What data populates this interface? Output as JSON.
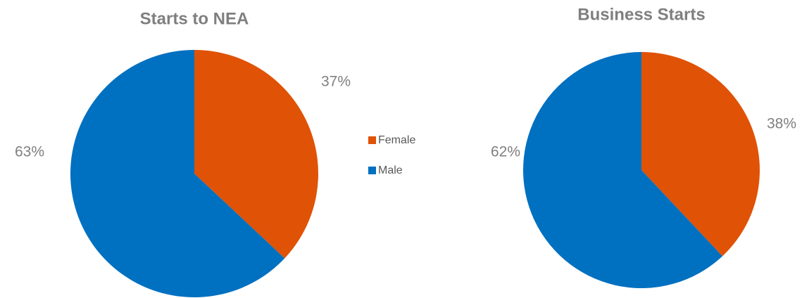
{
  "chart_data": [
    {
      "type": "pie",
      "title": "Starts to NEA",
      "categories": [
        "Female",
        "Male"
      ],
      "values": [
        37,
        63
      ],
      "value_labels": [
        "37%",
        "63%"
      ],
      "colors": [
        "#e05206",
        "#0070c0"
      ],
      "legend": "right"
    },
    {
      "type": "pie",
      "title": "Business Starts",
      "categories": [
        "Female",
        "Male"
      ],
      "values": [
        38,
        62
      ],
      "value_labels": [
        "38%",
        "62%"
      ],
      "colors": [
        "#e05206",
        "#0070c0"
      ]
    }
  ]
}
